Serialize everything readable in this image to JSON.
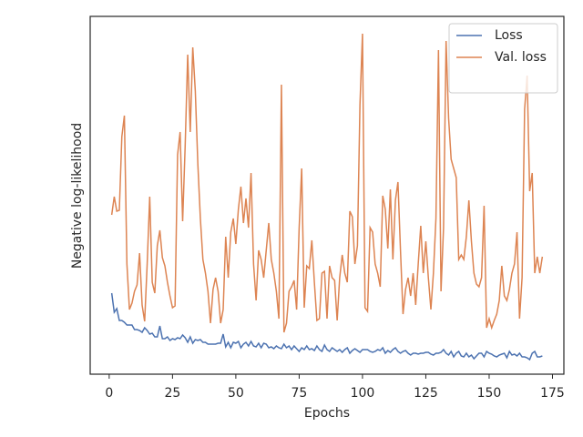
{
  "chart_data": {
    "type": "line",
    "xlabel": "Epochs",
    "ylabel": "Negative log-likelihood",
    "x": [
      1,
      2,
      3,
      4,
      5,
      6,
      7,
      8,
      9,
      10,
      11,
      12,
      13,
      14,
      15,
      16,
      17,
      18,
      19,
      20,
      21,
      22,
      23,
      24,
      25,
      26,
      27,
      28,
      29,
      30,
      31,
      32,
      33,
      34,
      35,
      36,
      37,
      38,
      39,
      40,
      41,
      42,
      43,
      44,
      45,
      46,
      47,
      48,
      49,
      50,
      51,
      52,
      53,
      54,
      55,
      56,
      57,
      58,
      59,
      60,
      61,
      62,
      63,
      64,
      65,
      66,
      67,
      68,
      69,
      70,
      71,
      72,
      73,
      74,
      75,
      76,
      77,
      78,
      79,
      80,
      81,
      82,
      83,
      84,
      85,
      86,
      87,
      88,
      89,
      90,
      91,
      92,
      93,
      94,
      95,
      96,
      97,
      98,
      99,
      100,
      101,
      102,
      103,
      104,
      105,
      106,
      107,
      108,
      109,
      110,
      111,
      112,
      113,
      114,
      115,
      116,
      117,
      118,
      119,
      120,
      121,
      122,
      123,
      124,
      125,
      126,
      127,
      128,
      129,
      130,
      131,
      132,
      133,
      134,
      135,
      136,
      137,
      138,
      139,
      140,
      141,
      142,
      143,
      144,
      145,
      146,
      147,
      148,
      149,
      150,
      151,
      152,
      153,
      154,
      155,
      156,
      157,
      158,
      159,
      160,
      161,
      162,
      163,
      164,
      165,
      166,
      167,
      168,
      169,
      170,
      171
    ],
    "series": [
      {
        "name": "Loss",
        "color": "#4c72b0",
        "values": [
          89,
          68,
          72,
          59,
          59,
          57,
          54,
          54,
          54,
          49,
          49,
          48,
          46,
          51,
          48,
          44,
          45,
          41,
          41,
          53,
          39,
          39,
          41,
          37,
          39,
          38,
          40,
          39,
          43,
          40,
          35,
          41,
          34,
          38,
          37,
          38,
          35,
          35,
          33,
          33,
          33,
          33,
          34,
          34,
          44,
          30,
          35,
          29,
          35,
          34,
          36,
          29,
          33,
          35,
          31,
          36,
          31,
          30,
          34,
          29,
          34,
          33,
          29,
          30,
          28,
          31,
          29,
          28,
          33,
          29,
          31,
          27,
          31,
          28,
          25,
          29,
          27,
          31,
          27,
          28,
          26,
          31,
          27,
          25,
          32,
          27,
          25,
          29,
          27,
          25,
          27,
          24,
          27,
          29,
          23,
          26,
          28,
          26,
          24,
          27,
          27,
          27,
          25,
          24,
          25,
          27,
          26,
          29,
          23,
          26,
          24,
          27,
          29,
          25,
          23,
          25,
          26,
          23,
          21,
          23,
          23,
          22,
          23,
          23,
          24,
          24,
          22,
          21,
          23,
          23,
          24,
          27,
          23,
          21,
          25,
          19,
          23,
          25,
          20,
          19,
          23,
          19,
          21,
          17,
          20,
          23,
          23,
          19,
          25,
          23,
          22,
          20,
          19,
          21,
          22,
          23,
          18,
          25,
          21,
          22,
          20,
          23,
          19,
          19,
          18,
          16,
          23,
          25,
          19,
          19,
          20
        ]
      },
      {
        "name": "Val. loss",
        "color": "#dd8452",
        "values": [
          175,
          195,
          179,
          180,
          261,
          284,
          121,
          71,
          78,
          91,
          98,
          133,
          76,
          58,
          121,
          195,
          101,
          89,
          141,
          158,
          128,
          119,
          101,
          86,
          73,
          75,
          241,
          266,
          168,
          251,
          351,
          266,
          359,
          311,
          231,
          171,
          126,
          111,
          91,
          56,
          93,
          106,
          91,
          56,
          71,
          151,
          106,
          156,
          171,
          143,
          181,
          206,
          166,
          193,
          161,
          221,
          121,
          81,
          136,
          126,
          106,
          136,
          166,
          126,
          111,
          91,
          61,
          318,
          46,
          56,
          91,
          96,
          103,
          71,
          161,
          226,
          73,
          119,
          116,
          147,
          101,
          59,
          61,
          111,
          113,
          61,
          119,
          106,
          103,
          59,
          106,
          131,
          111,
          101,
          179,
          173,
          121,
          141,
          296,
          374,
          73,
          69,
          161,
          156,
          121,
          111,
          96,
          196,
          181,
          138,
          203,
          126,
          191,
          211,
          136,
          66,
          93,
          106,
          86,
          111,
          76,
          121,
          163,
          111,
          146,
          106,
          71,
          111,
          171,
          356,
          91,
          161,
          366,
          281,
          236,
          226,
          216,
          126,
          131,
          126,
          151,
          191,
          146,
          111,
          99,
          96,
          106,
          185,
          51,
          61,
          51,
          59,
          66,
          81,
          119,
          86,
          81,
          93,
          111,
          121,
          156,
          61,
          106,
          291,
          328,
          201,
          221,
          111,
          129,
          111,
          129
        ]
      }
    ],
    "xlim": [
      -7.5,
      179.5
    ],
    "xticks": [
      0,
      25,
      50,
      75,
      100,
      125,
      150,
      175
    ],
    "ylim": [
      0,
      393
    ],
    "grid": false,
    "legend": "upper right"
  }
}
